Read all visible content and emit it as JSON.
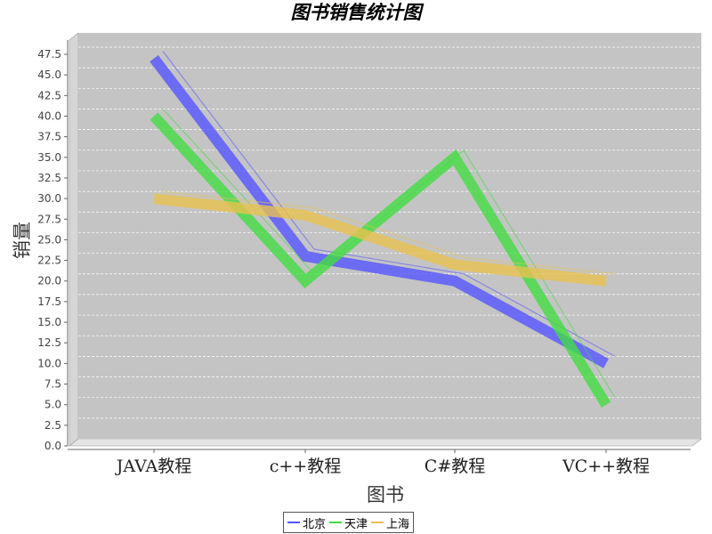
{
  "title": "图书销售统计图",
  "chart_data": {
    "type": "line",
    "title": "图书销售统计图",
    "xlabel": "图书",
    "ylabel": "销量",
    "categories": [
      "JAVA教程",
      "c++教程",
      "C#教程",
      "VC++教程"
    ],
    "ylim": [
      0,
      47.5
    ],
    "ytick_step": 2.5,
    "grid": true,
    "legend": "bottom",
    "series": [
      {
        "name": "北京",
        "color": "#5555ff",
        "values": [
          47,
          23,
          20,
          10
        ]
      },
      {
        "name": "天津",
        "color": "#44dd44",
        "values": [
          40,
          20,
          35,
          5
        ]
      },
      {
        "name": "上海",
        "color": "#e8c24f",
        "values": [
          30,
          28,
          22,
          20
        ]
      }
    ]
  }
}
